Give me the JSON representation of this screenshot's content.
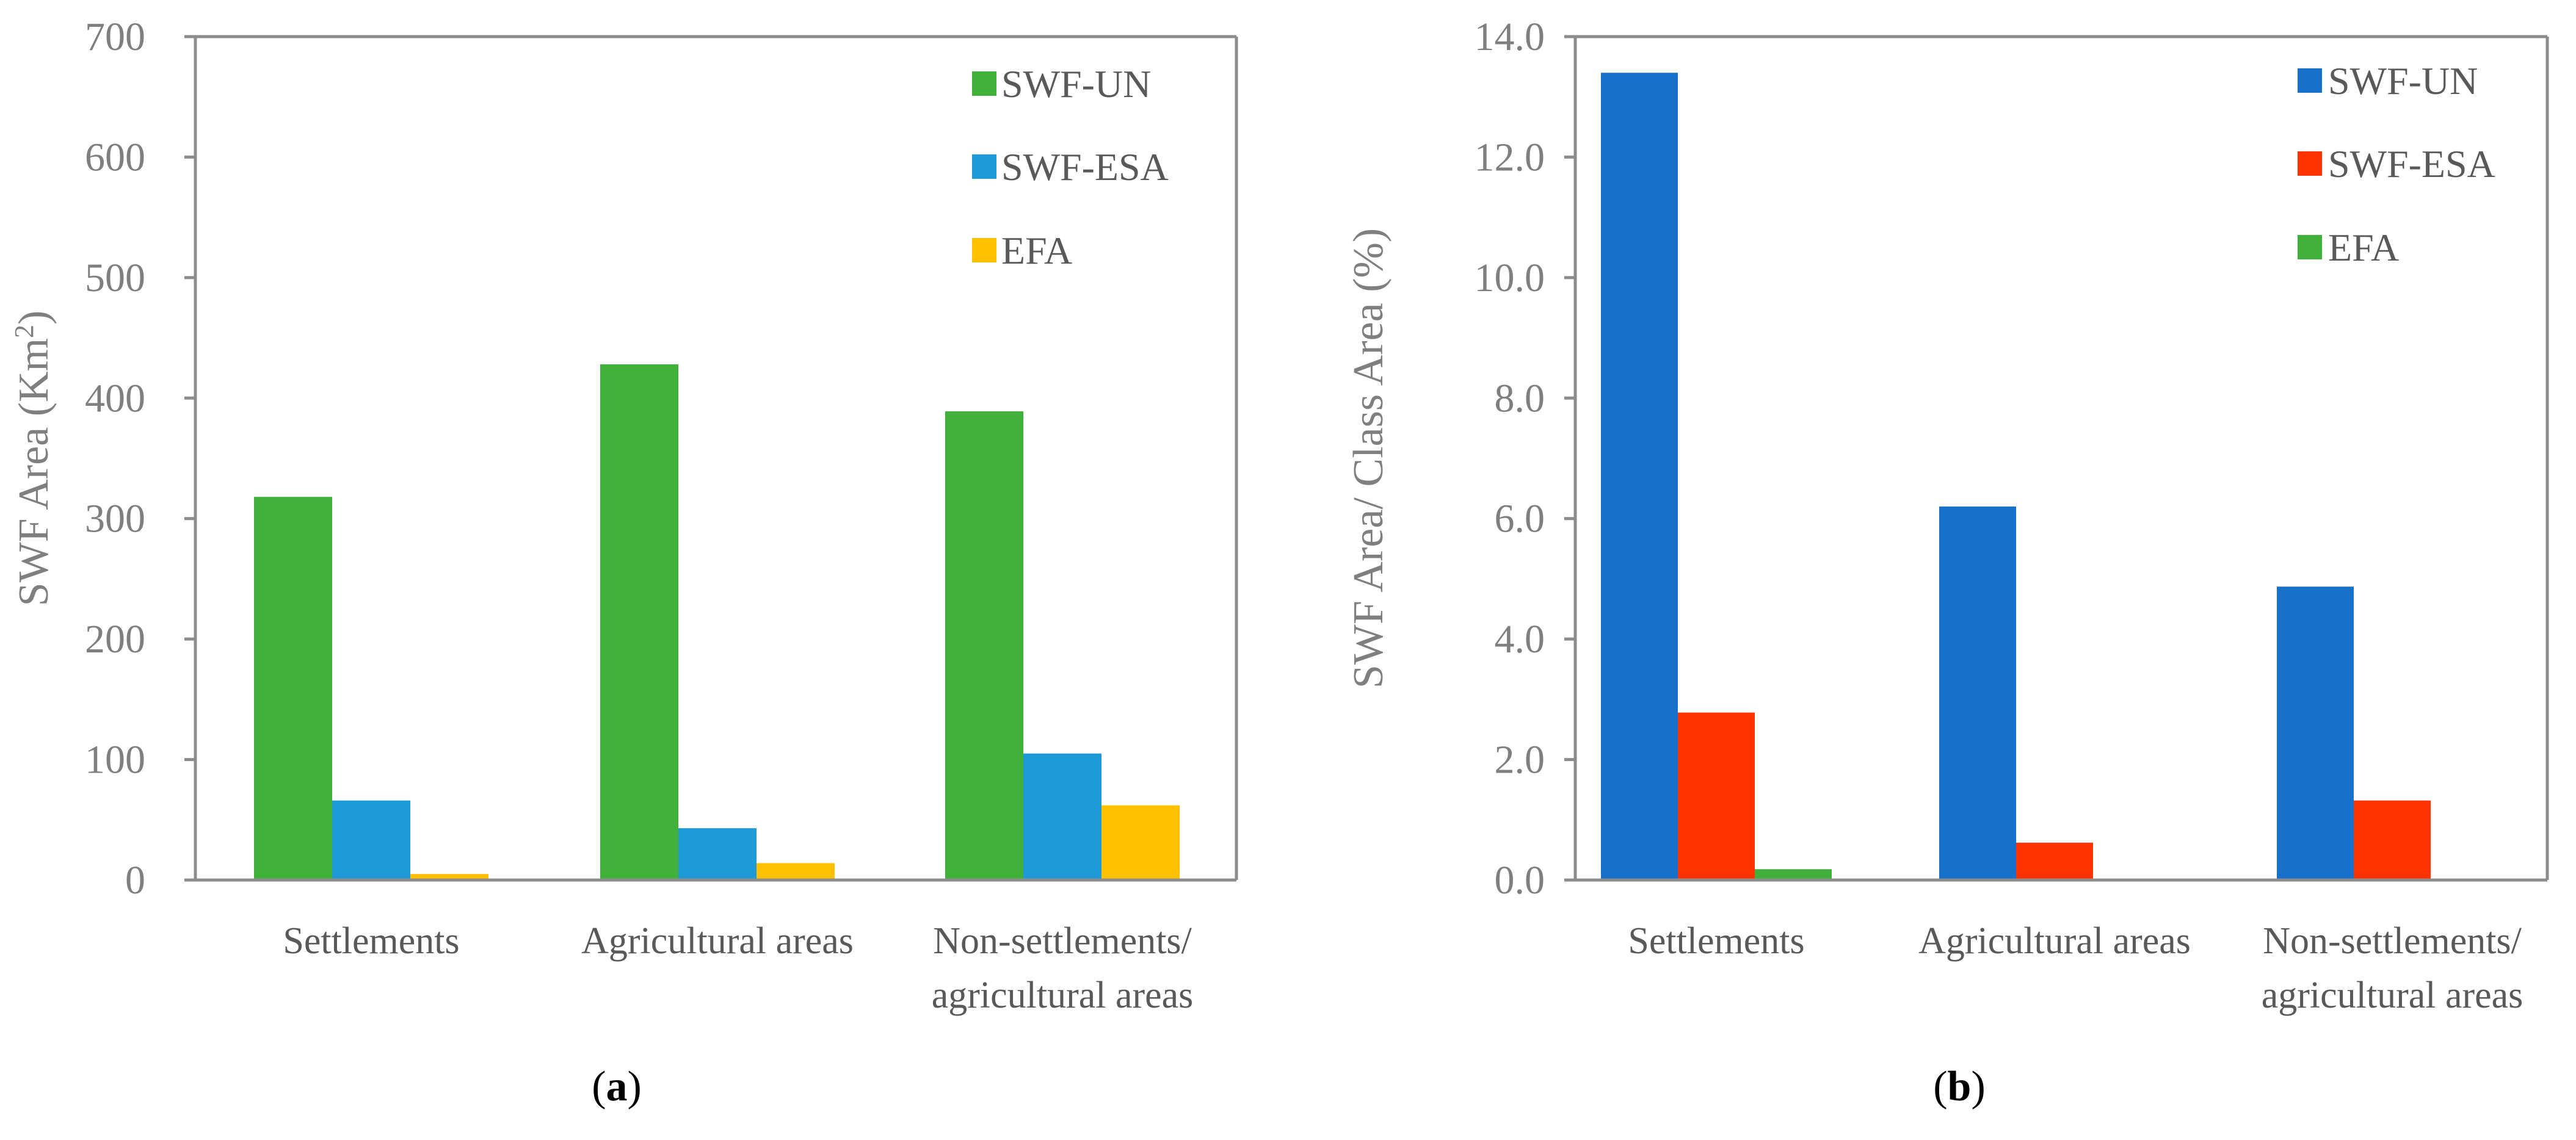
{
  "colors": {
    "green": "#41b13c",
    "light_blue": "#1e9ad6",
    "yellow": "#ffc000",
    "dark_blue": "#1770c9",
    "red": "#ff3300",
    "axis": "#8c8c8c",
    "text": "#595959"
  },
  "chart_data": [
    {
      "type": "bar",
      "panel_label": "a",
      "title": "",
      "xlabel": "",
      "ylabel": "SWF Area (Km",
      "ylabel_superscript": "2",
      "ylabel_close": ")",
      "ylim": [
        0,
        700
      ],
      "yticks": [
        "0",
        "100",
        "200",
        "300",
        "400",
        "500",
        "600",
        "700"
      ],
      "tick_values": [
        0,
        100,
        200,
        300,
        400,
        500,
        600,
        700
      ],
      "categories": [
        [
          "Settlements"
        ],
        [
          "Agricultural areas"
        ],
        [
          "Non-settlements/",
          "agricultural areas"
        ]
      ],
      "series": [
        {
          "name": "SWF-UN",
          "color": "#41b13c",
          "values": [
            318,
            428,
            389
          ]
        },
        {
          "name": "SWF-ESA",
          "color": "#1e9ad6",
          "values": [
            66,
            43,
            105
          ]
        },
        {
          "name": "EFA",
          "color": "#ffc000",
          "values": [
            5,
            14,
            62
          ]
        }
      ],
      "legend_position": "top-right",
      "grid": false
    },
    {
      "type": "bar",
      "panel_label": "b",
      "title": "",
      "xlabel": "",
      "ylabel": "SWF Area/ Class Area (%)",
      "ylim": [
        0,
        14
      ],
      "yticks": [
        "0.0",
        "2.0",
        "4.0",
        "6.0",
        "8.0",
        "10.0",
        "12.0",
        "14.0"
      ],
      "tick_values": [
        0,
        2,
        4,
        6,
        8,
        10,
        12,
        14
      ],
      "categories": [
        [
          "Settlements"
        ],
        [
          "Agricultural areas"
        ],
        [
          "Non-settlements/",
          "agricultural areas"
        ]
      ],
      "series": [
        {
          "name": "SWF-UN",
          "color": "#1770c9",
          "values": [
            13.4,
            6.2,
            4.87
          ]
        },
        {
          "name": "SWF-ESA",
          "color": "#ff3300",
          "values": [
            2.78,
            0.62,
            1.32
          ]
        },
        {
          "name": "EFA",
          "color": "#41b13c",
          "values": [
            0.18,
            0,
            0
          ]
        }
      ],
      "legend_position": "top-right",
      "grid": false
    }
  ]
}
